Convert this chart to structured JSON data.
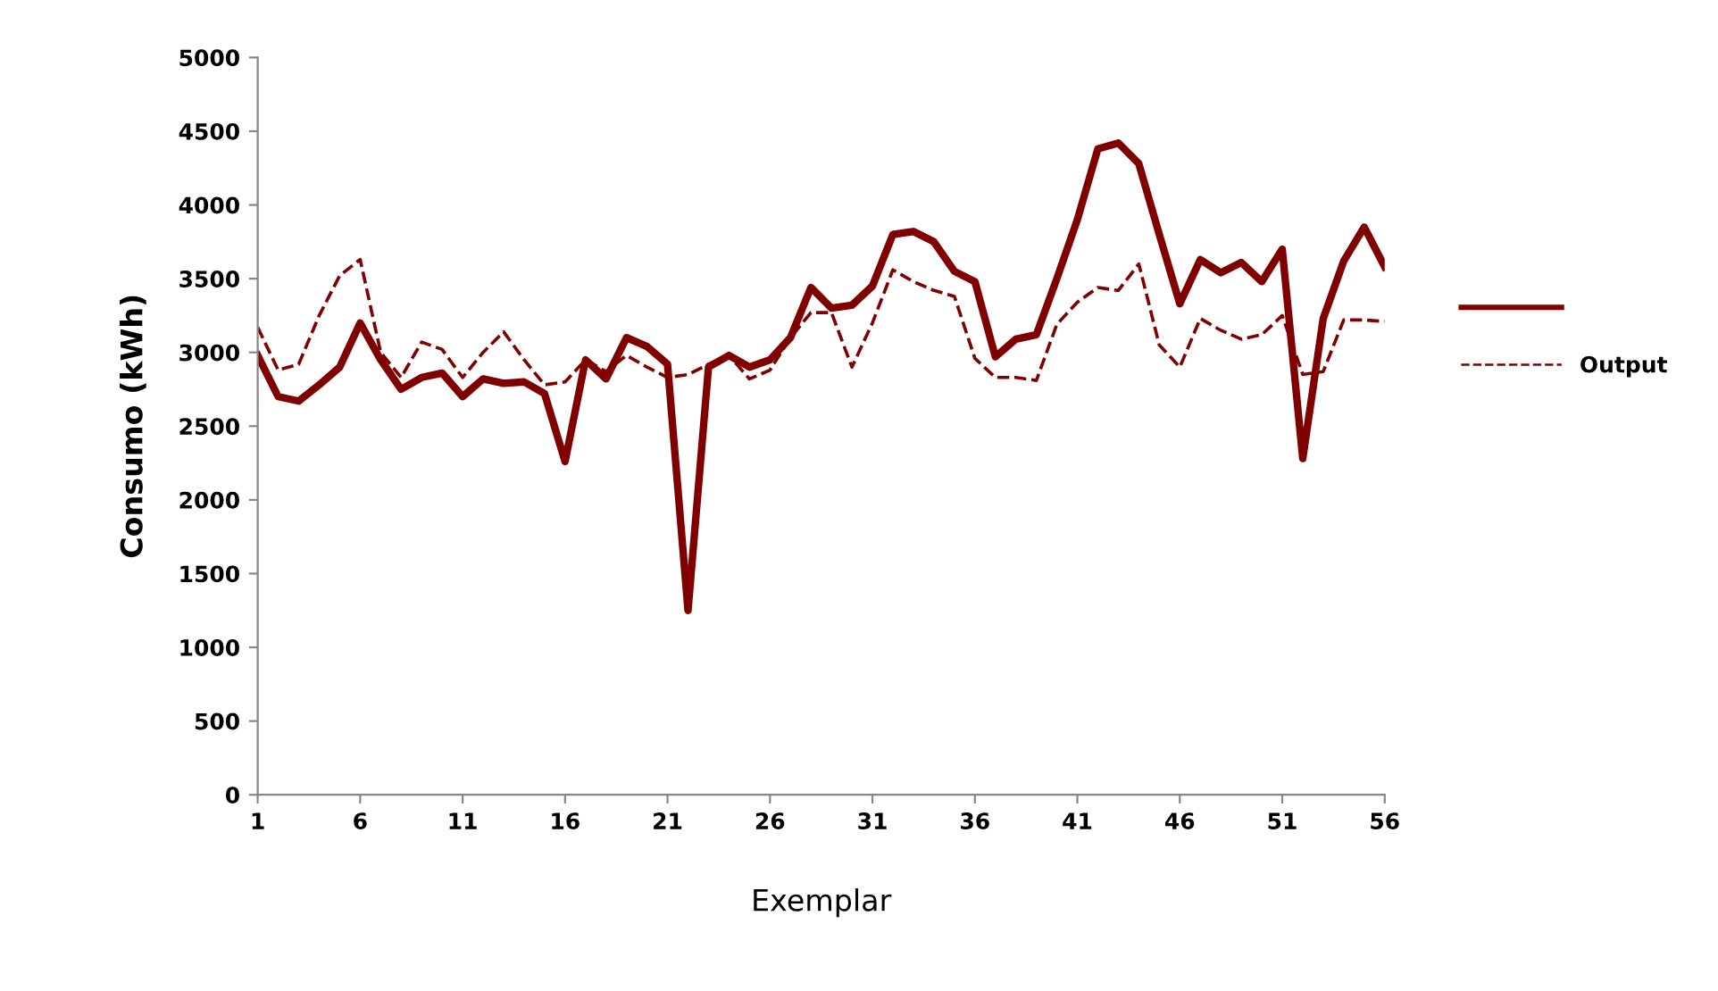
{
  "chart_data": {
    "type": "line",
    "xlabel": "Exemplar",
    "ylabel": "Consumo (kWh)",
    "x": [
      1,
      2,
      3,
      4,
      5,
      6,
      7,
      8,
      9,
      10,
      11,
      12,
      13,
      14,
      15,
      16,
      17,
      18,
      19,
      20,
      21,
      22,
      23,
      24,
      25,
      26,
      27,
      28,
      29,
      30,
      31,
      32,
      33,
      34,
      35,
      36,
      37,
      38,
      39,
      40,
      41,
      42,
      43,
      44,
      45,
      46,
      47,
      48,
      49,
      50,
      51,
      52,
      53,
      54,
      55,
      56
    ],
    "series": [
      {
        "color": "#800000",
        "line_style": "solid",
        "values": [
          2980,
          2700,
          2670,
          2780,
          2900,
          3200,
          2950,
          2750,
          2830,
          2860,
          2700,
          2820,
          2790,
          2800,
          2720,
          2260,
          2950,
          2820,
          3100,
          3040,
          2920,
          1250,
          2900,
          2980,
          2900,
          2950,
          3100,
          3440,
          3300,
          3320,
          3450,
          3800,
          3820,
          3750,
          3550,
          3480,
          2970,
          3090,
          3120,
          3500,
          3900,
          4380,
          4420,
          4280,
          3800,
          3330,
          3630,
          3540,
          3610,
          3480,
          3700,
          2280,
          3230,
          3620,
          3850,
          3580
        ]
      },
      {
        "name": "Output",
        "color": "#800000",
        "line_style": "dashed",
        "values": [
          3170,
          2880,
          2920,
          3250,
          3520,
          3630,
          3000,
          2830,
          3070,
          3020,
          2830,
          3000,
          3140,
          2950,
          2780,
          2800,
          2950,
          2870,
          2980,
          2900,
          2830,
          2850,
          2920,
          2980,
          2820,
          2880,
          3100,
          3270,
          3270,
          2900,
          3200,
          3560,
          3480,
          3420,
          3380,
          2960,
          2830,
          2830,
          2810,
          3190,
          3340,
          3440,
          3420,
          3600,
          3050,
          2900,
          3230,
          3150,
          3090,
          3120,
          3250,
          2850,
          2870,
          3220,
          3220,
          3210
        ]
      }
    ],
    "xlim": [
      1,
      56
    ],
    "xticks": [
      1,
      6,
      11,
      16,
      21,
      26,
      31,
      36,
      41,
      46,
      51,
      56
    ],
    "ylim": [
      0,
      5000
    ],
    "yticks": [
      0,
      500,
      1000,
      1500,
      2000,
      2500,
      3000,
      3500,
      4000,
      4500,
      5000
    ],
    "grid": false,
    "legend": "right",
    "marker": "none"
  }
}
